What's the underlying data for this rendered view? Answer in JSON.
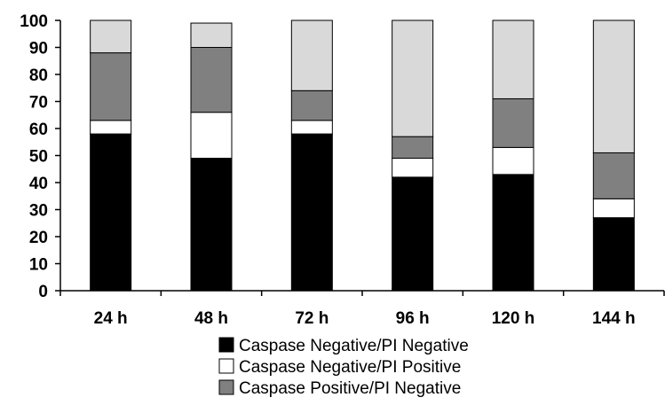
{
  "chart_data": {
    "type": "bar",
    "stacked": true,
    "percent_stacked": true,
    "title": "",
    "xlabel": "",
    "ylabel": "",
    "categories": [
      "24 h",
      "48 h",
      "72 h",
      "96 h",
      "120 h",
      "144 h"
    ],
    "ylim": [
      0,
      100
    ],
    "yticks": [
      0,
      10,
      20,
      30,
      40,
      50,
      60,
      70,
      80,
      90,
      100
    ],
    "grid": false,
    "legend_position": "bottom",
    "series": [
      {
        "name": "Caspase Negative/PI Negative",
        "color": "#000000",
        "values": [
          58,
          49,
          58,
          42,
          43,
          27
        ]
      },
      {
        "name": "Caspase Negative/PI Positive",
        "color": "#ffffff",
        "values": [
          5,
          17,
          5,
          7,
          10,
          7
        ]
      },
      {
        "name": "Caspase Positive/PI Negative",
        "color": "#808080",
        "values": [
          25,
          24,
          11,
          8,
          18,
          17
        ]
      },
      {
        "name": "",
        "color": "#d9d9d9",
        "values": [
          12,
          9,
          26,
          43,
          29,
          49
        ]
      }
    ],
    "legend_entries": [
      "Caspase Negative/PI Negative",
      "Caspase Negative/PI Positive",
      "Caspase Positive/PI Negative"
    ]
  }
}
